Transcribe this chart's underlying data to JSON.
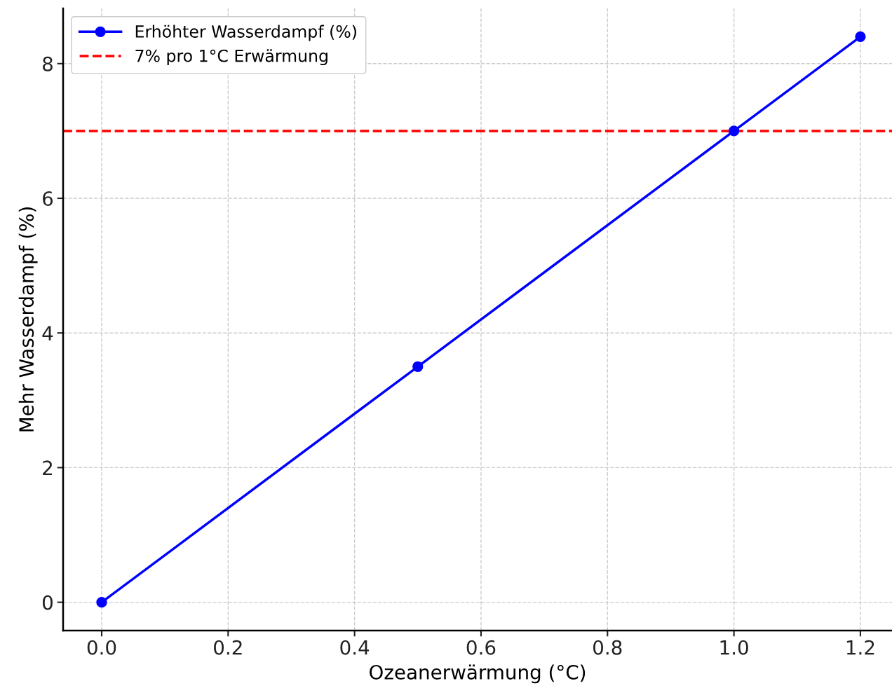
{
  "chart_data": {
    "type": "line",
    "xlabel": "Ozeanerwärmung (°C)",
    "ylabel": "Mehr Wasserdampf (%)",
    "x": [
      0,
      0.5,
      1.0,
      1.2
    ],
    "series": [
      {
        "name": "Erhöhter Wasserdampf (%)",
        "color": "#0000ff",
        "values": [
          0,
          3.5,
          7,
          8.4
        ]
      }
    ],
    "ref_lines": [
      {
        "axis": "y",
        "value": 7,
        "label": "7% pro 1°C Erwärmung",
        "color": "#ff0000",
        "line_style": "dashed"
      }
    ],
    "xlim": [
      -0.061,
      1.25
    ],
    "ylim": [
      -0.42,
      8.82
    ],
    "xticks": [
      {
        "value": 0,
        "label": "0.0"
      },
      0.2,
      0.4,
      0.6,
      0.8,
      {
        "value": 1,
        "label": "1.0"
      },
      1.2
    ],
    "yticks": [
      0,
      2,
      4,
      6,
      8
    ],
    "grid": true,
    "legend": "top left",
    "marker": "circle",
    "line_style": "solid"
  }
}
